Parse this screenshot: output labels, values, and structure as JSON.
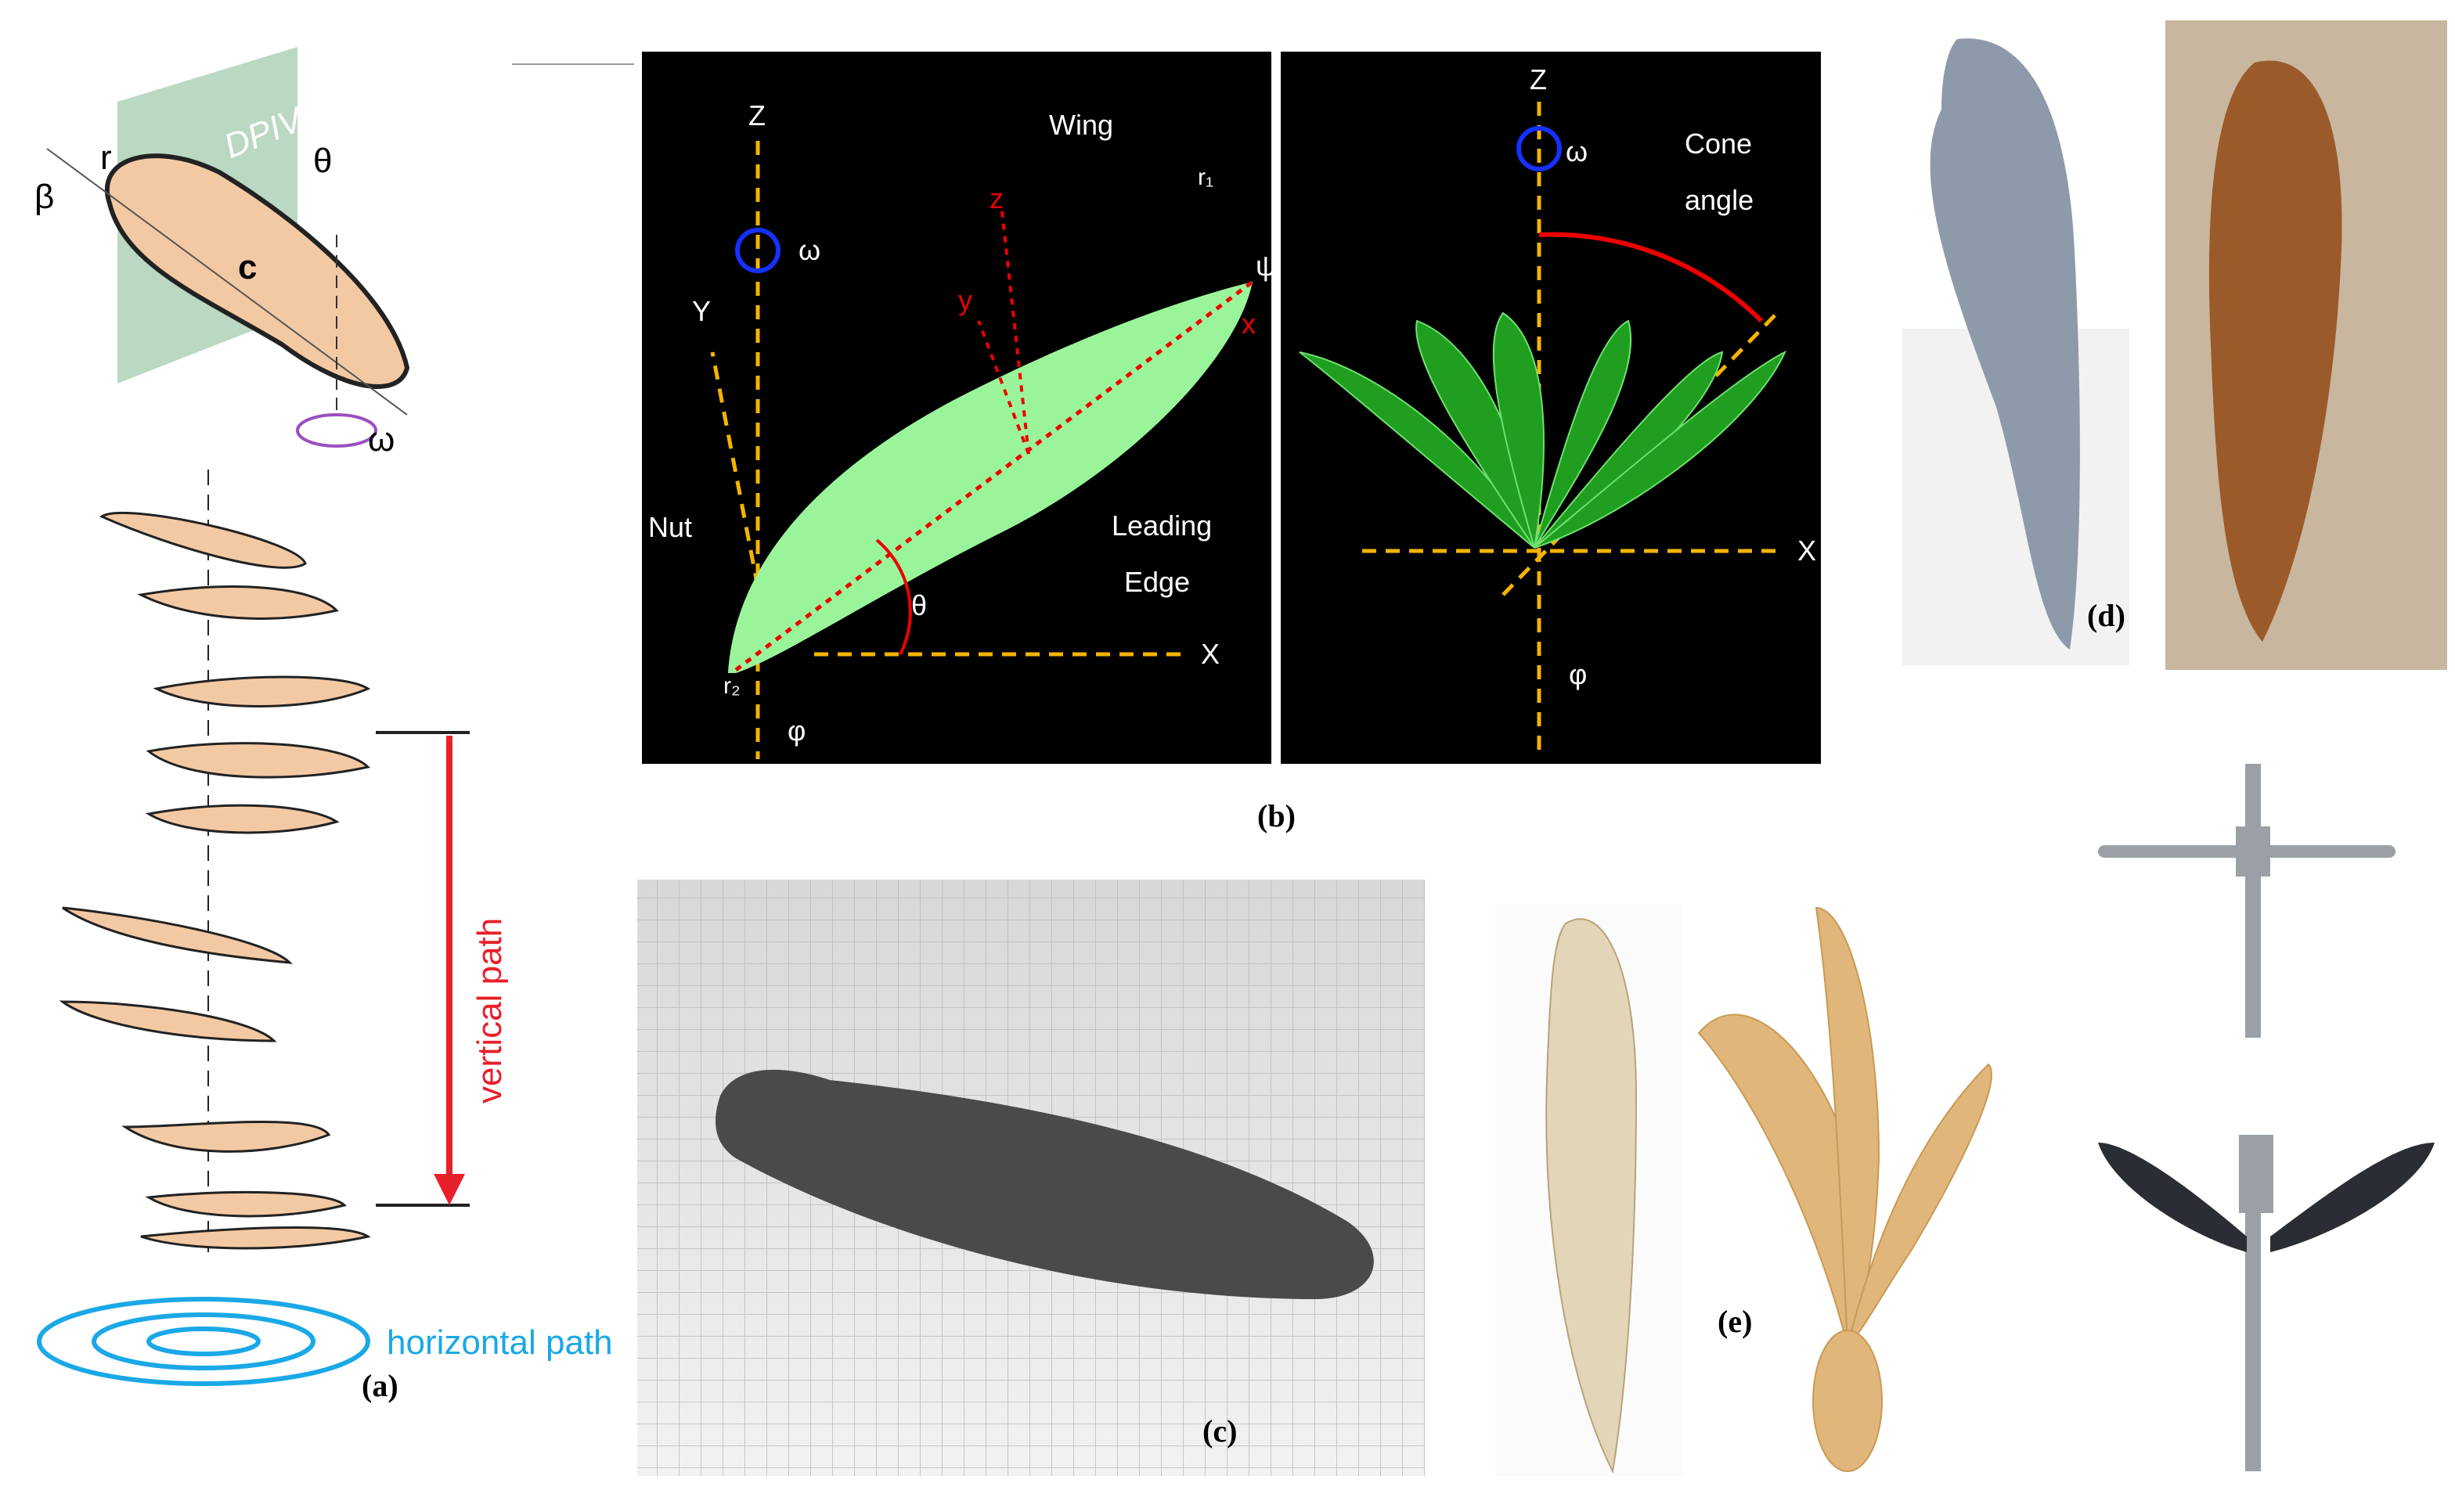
{
  "panel_a": {
    "label": "(a)",
    "plane": "DPIV",
    "radius": "r",
    "pitch": "β",
    "angle": "θ",
    "chord": "c",
    "rotation": "ω",
    "vertical": "vertical path",
    "horizontal": "horizontal path"
  },
  "panel_b": {
    "label": "(b)",
    "left": {
      "z_axis": "Z",
      "rotation": "ω",
      "wing": "Wing",
      "tip": "r₁",
      "psi": "ψ",
      "local_z": "z",
      "local_y": "y",
      "local_x": "x",
      "y_axis": "Y",
      "nut": "Nut",
      "leading_edge": [
        "Leading",
        "Edge"
      ],
      "angle": "θ",
      "x_axis": "X",
      "root": "r₂",
      "phi": "φ"
    },
    "right": {
      "z_axis": "Z",
      "rotation": "ω",
      "cone_angle": [
        "Cone",
        "angle"
      ],
      "x_axis": "X",
      "phi": "φ"
    }
  },
  "panel_c": {
    "label": "(c)"
  },
  "panel_d": {
    "label": "(d)"
  },
  "panel_e": {
    "label": "(e)"
  }
}
